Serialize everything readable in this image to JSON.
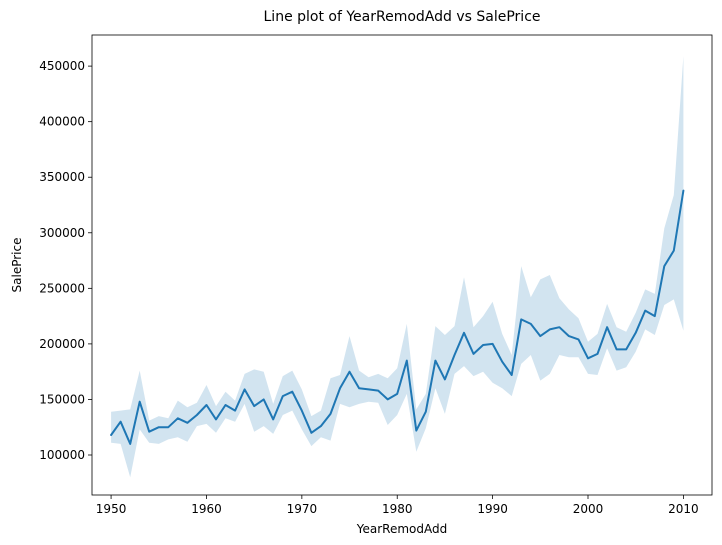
{
  "chart_data": {
    "type": "line",
    "title": "Line plot of YearRemodAdd vs SalePrice",
    "xlabel": "YearRemodAdd",
    "ylabel": "SalePrice",
    "xlim": [
      1948.0,
      2013.0
    ],
    "ylim": [
      64000,
      478000
    ],
    "x_ticks": [
      1950,
      1960,
      1970,
      1980,
      1990,
      2000,
      2010
    ],
    "y_ticks": [
      100000,
      150000,
      200000,
      250000,
      300000,
      350000,
      400000,
      450000
    ],
    "grid": false,
    "legend": "none",
    "series": [
      {
        "color": "#1f77b4",
        "band_color": "#1f77b4",
        "x": [
          1950,
          1951,
          1952,
          1953,
          1954,
          1955,
          1956,
          1957,
          1958,
          1959,
          1960,
          1961,
          1962,
          1963,
          1964,
          1965,
          1966,
          1967,
          1968,
          1969,
          1970,
          1971,
          1972,
          1973,
          1974,
          1975,
          1976,
          1977,
          1978,
          1979,
          1980,
          1981,
          1982,
          1983,
          1984,
          1985,
          1986,
          1987,
          1988,
          1989,
          1990,
          1991,
          1992,
          1993,
          1994,
          1995,
          1996,
          1997,
          1998,
          1999,
          2000,
          2001,
          2002,
          2003,
          2004,
          2005,
          2006,
          2007,
          2008,
          2009,
          2010
        ],
        "y": [
          118000,
          130000,
          110000,
          148000,
          121000,
          125000,
          125000,
          133000,
          129000,
          136000,
          145000,
          132000,
          145000,
          140000,
          159000,
          144000,
          150000,
          132000,
          153000,
          157000,
          140000,
          120000,
          126000,
          137000,
          160000,
          175000,
          160000,
          159000,
          158000,
          150000,
          155000,
          185000,
          122000,
          139000,
          185000,
          168000,
          190000,
          210000,
          191000,
          199000,
          200000,
          184000,
          172000,
          222000,
          218000,
          207000,
          213000,
          215000,
          207000,
          204000,
          187000,
          191000,
          215000,
          195000,
          195000,
          210000,
          230000,
          225000,
          270000,
          284000,
          338000
        ],
        "lower": [
          111000,
          110000,
          80000,
          123000,
          111000,
          110000,
          114000,
          116000,
          112000,
          126000,
          128000,
          120000,
          133000,
          130000,
          146000,
          121000,
          126000,
          119000,
          136000,
          140000,
          123000,
          108000,
          116000,
          113000,
          146000,
          143000,
          146000,
          148000,
          147000,
          127000,
          136000,
          155000,
          103000,
          124000,
          160000,
          137000,
          173000,
          180000,
          171000,
          175000,
          165000,
          160000,
          153000,
          182000,
          190000,
          167000,
          173000,
          190000,
          188000,
          188000,
          173000,
          172000,
          196000,
          176000,
          179000,
          193000,
          213000,
          208000,
          235000,
          240000,
          212000
        ],
        "upper": [
          139000,
          140000,
          141000,
          176000,
          131000,
          135000,
          133000,
          149000,
          143000,
          147000,
          163000,
          144000,
          157000,
          149000,
          173000,
          177000,
          175000,
          146000,
          171000,
          176000,
          159000,
          135000,
          140000,
          169000,
          172000,
          207000,
          176000,
          170000,
          173000,
          169000,
          178000,
          218000,
          141000,
          155000,
          216000,
          208000,
          216000,
          260000,
          215000,
          225000,
          238000,
          209000,
          190000,
          270000,
          242000,
          258000,
          262000,
          241000,
          231000,
          223000,
          202000,
          209000,
          236000,
          215000,
          211000,
          228000,
          249000,
          245000,
          304000,
          334000,
          459000
        ]
      }
    ]
  }
}
